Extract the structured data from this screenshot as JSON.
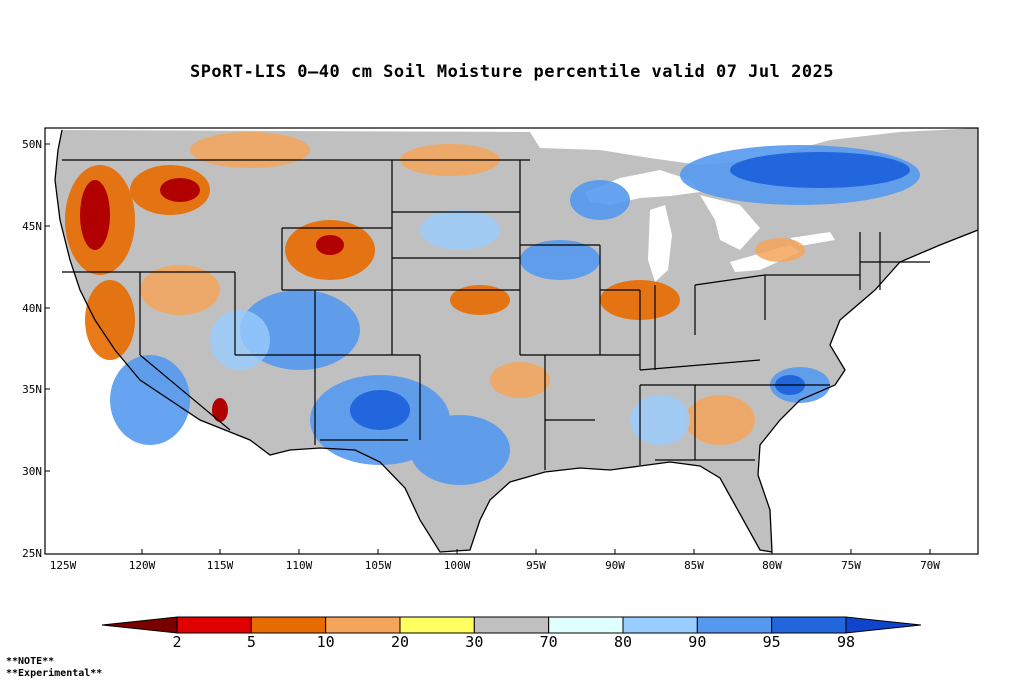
{
  "title": "SPoRT-LIS 0–40 cm Soil Moisture percentile valid 07 Jul 2025",
  "map": {
    "lat_labels": [
      "50N",
      "45N",
      "40N",
      "35N",
      "30N",
      "25N"
    ],
    "lon_labels": [
      "125W",
      "120W",
      "115W",
      "110W",
      "105W",
      "100W",
      "95W",
      "90W",
      "85W",
      "80W",
      "75W",
      "70W"
    ],
    "background_color": "#c0c0c0"
  },
  "colorbar": {
    "labels": [
      "2",
      "5",
      "10",
      "20",
      "30",
      "70",
      "80",
      "90",
      "95",
      "98"
    ],
    "colors": [
      "#7a0000",
      "#e00000",
      "#e86b00",
      "#f5a55a",
      "#ffff60",
      "#c0c0c0",
      "#e0ffff",
      "#99ccff",
      "#5599ee",
      "#2266dd",
      "#1144cc"
    ]
  },
  "notes": [
    "**NOTE**",
    "**Experimental**"
  ]
}
